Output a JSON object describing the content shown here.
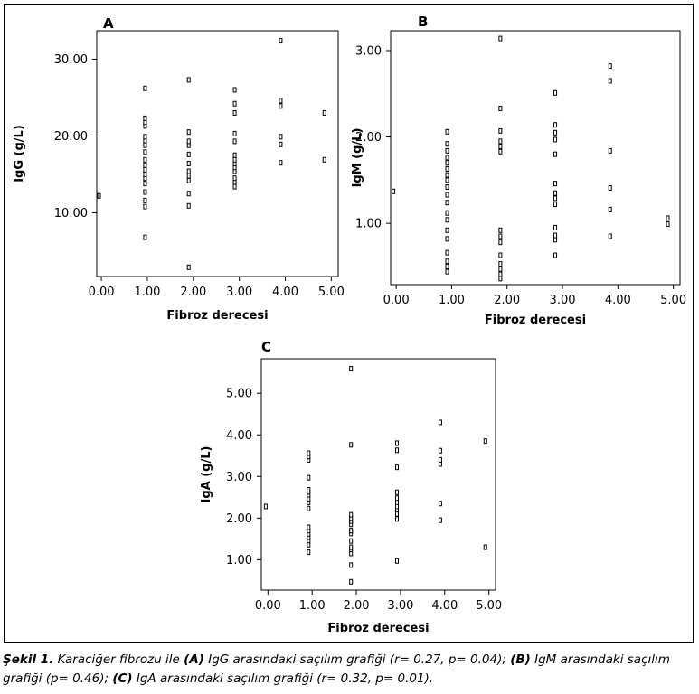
{
  "chart_data": [
    {
      "panel": "A",
      "type": "scatter",
      "xlabel": "Fibroz derecesi",
      "ylabel": "IgG (g/L)",
      "xticks": [
        "0.00",
        "1.00",
        "2.00",
        "3.00",
        "4.00",
        "5.00"
      ],
      "yticks": [
        "10.00",
        "20.00",
        "30.00"
      ],
      "xlim": [
        -0.1,
        5.15
      ],
      "ylim": [
        1.7,
        33.7
      ],
      "points": [
        [
          -0.05,
          12.2
        ],
        [
          0.95,
          6.8
        ],
        [
          0.95,
          10.8
        ],
        [
          0.95,
          11.6
        ],
        [
          0.95,
          12.7
        ],
        [
          0.95,
          13.8
        ],
        [
          0.95,
          14.5
        ],
        [
          0.95,
          15.0
        ],
        [
          0.95,
          15.6
        ],
        [
          0.95,
          16.2
        ],
        [
          0.95,
          16.9
        ],
        [
          0.95,
          17.9
        ],
        [
          0.95,
          18.8
        ],
        [
          0.95,
          19.4
        ],
        [
          0.95,
          19.9
        ],
        [
          0.95,
          21.3
        ],
        [
          0.95,
          21.8
        ],
        [
          0.95,
          22.3
        ],
        [
          0.95,
          26.2
        ],
        [
          1.9,
          2.9
        ],
        [
          1.9,
          10.9
        ],
        [
          1.9,
          12.5
        ],
        [
          1.9,
          14.2
        ],
        [
          1.9,
          14.8
        ],
        [
          1.9,
          15.4
        ],
        [
          1.9,
          16.4
        ],
        [
          1.9,
          17.6
        ],
        [
          1.9,
          18.8
        ],
        [
          1.9,
          19.3
        ],
        [
          1.9,
          20.5
        ],
        [
          1.9,
          27.3
        ],
        [
          2.9,
          13.4
        ],
        [
          2.9,
          14.0
        ],
        [
          2.9,
          14.5
        ],
        [
          2.9,
          15.4
        ],
        [
          2.9,
          15.9
        ],
        [
          2.9,
          16.4
        ],
        [
          2.9,
          16.9
        ],
        [
          2.9,
          17.5
        ],
        [
          2.9,
          19.3
        ],
        [
          2.9,
          20.3
        ],
        [
          2.9,
          23.0
        ],
        [
          2.9,
          24.2
        ],
        [
          2.9,
          26.0
        ],
        [
          3.9,
          16.5
        ],
        [
          3.9,
          18.9
        ],
        [
          3.9,
          19.9
        ],
        [
          3.9,
          23.9
        ],
        [
          3.9,
          24.6
        ],
        [
          3.9,
          32.4
        ],
        [
          4.85,
          16.9
        ],
        [
          4.85,
          23.0
        ]
      ]
    },
    {
      "panel": "B",
      "type": "scatter",
      "xlabel": "Fibroz derecesi",
      "ylabel": "IgM (g/L)",
      "xticks": [
        "0.00",
        "1.00",
        "2.00",
        "3.00",
        "4.00",
        "5.00"
      ],
      "yticks": [
        "1.00",
        "2.00",
        "3.00"
      ],
      "xlim": [
        -0.1,
        5.12
      ],
      "ylim": [
        0.29,
        3.23
      ],
      "points": [
        [
          -0.05,
          1.37
        ],
        [
          0.92,
          0.44
        ],
        [
          0.92,
          0.5
        ],
        [
          0.92,
          0.56
        ],
        [
          0.92,
          0.66
        ],
        [
          0.92,
          0.82
        ],
        [
          0.92,
          0.92
        ],
        [
          0.92,
          1.04
        ],
        [
          0.92,
          1.12
        ],
        [
          0.92,
          1.24
        ],
        [
          0.92,
          1.33
        ],
        [
          0.92,
          1.42
        ],
        [
          0.92,
          1.5
        ],
        [
          0.92,
          1.56
        ],
        [
          0.92,
          1.63
        ],
        [
          0.92,
          1.7
        ],
        [
          0.92,
          1.76
        ],
        [
          0.92,
          1.84
        ],
        [
          0.92,
          1.92
        ],
        [
          0.92,
          2.06
        ],
        [
          1.88,
          0.36
        ],
        [
          1.88,
          0.41
        ],
        [
          1.88,
          0.47
        ],
        [
          1.88,
          0.53
        ],
        [
          1.88,
          0.63
        ],
        [
          1.88,
          0.78
        ],
        [
          1.88,
          0.85
        ],
        [
          1.88,
          0.92
        ],
        [
          1.88,
          1.83
        ],
        [
          1.88,
          1.89
        ],
        [
          1.88,
          1.95
        ],
        [
          1.88,
          2.07
        ],
        [
          1.88,
          2.33
        ],
        [
          1.88,
          3.14
        ],
        [
          2.87,
          0.63
        ],
        [
          2.87,
          0.81
        ],
        [
          2.87,
          0.86
        ],
        [
          2.87,
          0.95
        ],
        [
          2.87,
          1.22
        ],
        [
          2.87,
          1.29
        ],
        [
          2.87,
          1.35
        ],
        [
          2.87,
          1.46
        ],
        [
          2.87,
          1.8
        ],
        [
          2.87,
          1.97
        ],
        [
          2.87,
          2.05
        ],
        [
          2.87,
          2.14
        ],
        [
          2.87,
          2.51
        ],
        [
          3.86,
          0.85
        ],
        [
          3.86,
          1.16
        ],
        [
          3.86,
          1.41
        ],
        [
          3.86,
          1.84
        ],
        [
          3.86,
          2.65
        ],
        [
          3.86,
          2.82
        ],
        [
          4.9,
          0.99
        ],
        [
          4.9,
          1.06
        ]
      ]
    },
    {
      "panel": "C",
      "type": "scatter",
      "xlabel": "Fibroz derecesi",
      "ylabel": "IgA (g/L)",
      "xticks": [
        "0.00",
        "1.00",
        "2.00",
        "3.00",
        "4.00",
        "5.00"
      ],
      "yticks": [
        "1.00",
        "2.00",
        "3.00",
        "4.00",
        "5.00"
      ],
      "xlim": [
        -0.15,
        5.15
      ],
      "ylim": [
        0.27,
        5.83
      ],
      "points": [
        [
          -0.05,
          2.28
        ],
        [
          0.92,
          1.18
        ],
        [
          0.92,
          1.36
        ],
        [
          0.92,
          1.46
        ],
        [
          0.92,
          1.54
        ],
        [
          0.92,
          1.62
        ],
        [
          0.92,
          1.7
        ],
        [
          0.92,
          1.78
        ],
        [
          0.92,
          2.23
        ],
        [
          0.92,
          2.38
        ],
        [
          0.92,
          2.46
        ],
        [
          0.92,
          2.56
        ],
        [
          0.92,
          2.63
        ],
        [
          0.92,
          2.68
        ],
        [
          0.92,
          2.97
        ],
        [
          0.92,
          3.4
        ],
        [
          0.92,
          3.48
        ],
        [
          0.92,
          3.56
        ],
        [
          1.88,
          0.47
        ],
        [
          1.88,
          0.87
        ],
        [
          1.88,
          1.15
        ],
        [
          1.88,
          1.25
        ],
        [
          1.88,
          1.3
        ],
        [
          1.88,
          1.45
        ],
        [
          1.88,
          1.63
        ],
        [
          1.88,
          1.7
        ],
        [
          1.88,
          1.85
        ],
        [
          1.88,
          1.93
        ],
        [
          1.88,
          2.0
        ],
        [
          1.88,
          2.08
        ],
        [
          1.88,
          3.76
        ],
        [
          1.88,
          5.59
        ],
        [
          2.92,
          0.97
        ],
        [
          2.92,
          1.98
        ],
        [
          2.92,
          2.1
        ],
        [
          2.92,
          2.2
        ],
        [
          2.92,
          2.28
        ],
        [
          2.92,
          2.38
        ],
        [
          2.92,
          2.48
        ],
        [
          2.92,
          2.62
        ],
        [
          2.92,
          3.22
        ],
        [
          2.92,
          3.63
        ],
        [
          2.92,
          3.8
        ],
        [
          3.9,
          1.95
        ],
        [
          3.9,
          2.35
        ],
        [
          3.9,
          3.3
        ],
        [
          3.9,
          3.4
        ],
        [
          3.9,
          3.62
        ],
        [
          3.9,
          4.3
        ],
        [
          4.92,
          1.3
        ],
        [
          4.92,
          3.85
        ]
      ]
    }
  ],
  "caption": {
    "label": "Şekil 1.",
    "t1": " Karaciğer fibrozu ile ",
    "a": "(A)",
    "t2": " IgG arasındaki saçılım grafiği (r= 0.27, p= 0.04); ",
    "b": "(B)",
    "t3": " IgM arasındaki saçılım grafiği (p= 0.46); ",
    "c": "(C)",
    "t4": " IgA arasındaki saçılım grafiği (r= 0.32, p= 0.01)."
  }
}
